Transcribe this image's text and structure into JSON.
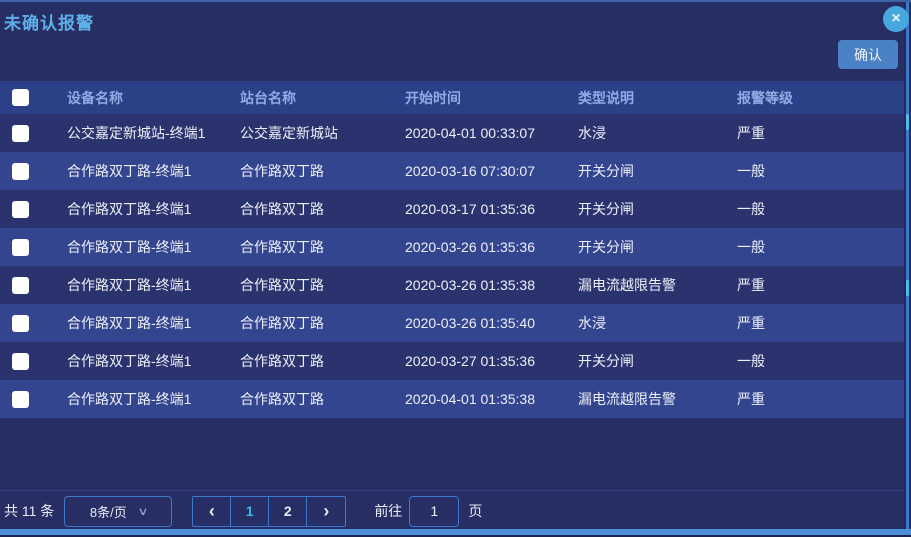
{
  "dialog": {
    "title": "未确认报警",
    "confirm_label": "确认",
    "close_icon": "×"
  },
  "table": {
    "select_all_checked": false,
    "columns": [
      "设备名称",
      "站台名称",
      "开始时间",
      "类型说明",
      "报警等级"
    ],
    "rows": [
      {
        "checked": false,
        "device": "公交嘉定新城站-终端1",
        "station": "公交嘉定新城站",
        "start_time": "2020-04-01 00:33:07",
        "type": "水浸",
        "level": "严重"
      },
      {
        "checked": false,
        "device": "合作路双丁路-终端1",
        "station": "合作路双丁路",
        "start_time": "2020-03-16 07:30:07",
        "type": "开关分闸",
        "level": "一般"
      },
      {
        "checked": false,
        "device": "合作路双丁路-终端1",
        "station": "合作路双丁路",
        "start_time": "2020-03-17 01:35:36",
        "type": "开关分闸",
        "level": "一般"
      },
      {
        "checked": false,
        "device": "合作路双丁路-终端1",
        "station": "合作路双丁路",
        "start_time": "2020-03-26 01:35:36",
        "type": "开关分闸",
        "level": "一般"
      },
      {
        "checked": false,
        "device": "合作路双丁路-终端1",
        "station": "合作路双丁路",
        "start_time": "2020-03-26 01:35:38",
        "type": "漏电流越限告警",
        "level": "严重"
      },
      {
        "checked": false,
        "device": "合作路双丁路-终端1",
        "station": "合作路双丁路",
        "start_time": "2020-03-26 01:35:40",
        "type": "水浸",
        "level": "严重"
      },
      {
        "checked": false,
        "device": "合作路双丁路-终端1",
        "station": "合作路双丁路",
        "start_time": "2020-03-27 01:35:36",
        "type": "开关分闸",
        "level": "一般"
      },
      {
        "checked": false,
        "device": "合作路双丁路-终端1",
        "station": "合作路双丁路",
        "start_time": "2020-04-01 01:35:38",
        "type": "漏电流越限告警",
        "level": "严重"
      }
    ]
  },
  "pagination": {
    "total_label": "共 11 条",
    "page_size_label": "8条/页",
    "chevron_down_icon": "∨",
    "prev_icon": "‹",
    "pages": [
      "1",
      "2"
    ],
    "active_page": "1",
    "next_icon": "›",
    "goto_label": "前往",
    "goto_value": "1",
    "page_unit_label": "页"
  },
  "colors": {
    "dialog_bg": "#272e63",
    "header_bg": "#2c4087",
    "row_dark": "#2b336e",
    "row_light": "#344590",
    "title_text": "#5fb0e8",
    "header_text": "#8fabe6",
    "accent_border": "#3e78cc",
    "active_page": "#41b4f0",
    "confirm_bg": "#4a80c4",
    "close_bg": "#48a8dd",
    "edge_strip": "#4a8fd8"
  }
}
